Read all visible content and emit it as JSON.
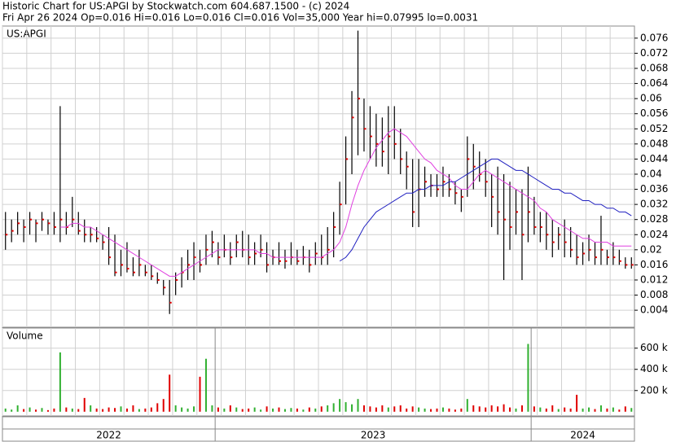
{
  "chart_data": {
    "type": "ohlc",
    "title": "Historic Chart for US:APGI by Stockwatch.com 604.687.1500 - (c) 2024",
    "subtitle": "Fri Apr 26 2024  Op=0.016  Hi=0.016  Lo=0.016  Cl=0.016  Vol=35,000  Year hi=0.07995  lo=0.0031",
    "symbol": "US:APGI",
    "volume_title": "Volume",
    "categories": [
      "2022",
      null,
      null,
      null,
      null,
      null,
      null,
      null,
      null,
      null,
      null,
      null,
      null,
      null,
      null,
      null,
      null,
      null,
      null,
      null,
      null,
      null,
      null,
      null,
      null,
      null,
      null,
      null,
      null,
      null,
      null,
      null,
      null,
      null,
      null,
      "2023",
      null,
      null,
      null,
      null,
      null,
      null,
      null,
      null,
      null,
      null,
      null,
      null,
      null,
      null,
      null,
      null,
      null,
      null,
      null,
      null,
      null,
      null,
      null,
      null,
      null,
      null,
      null,
      null,
      null,
      null,
      null,
      null,
      null,
      null,
      null,
      null,
      null,
      null,
      null,
      null,
      null,
      null,
      null,
      null,
      null,
      null,
      null,
      null,
      null,
      null,
      null,
      "2024",
      null,
      null,
      null,
      null,
      null,
      null,
      null,
      null,
      null,
      null,
      null,
      null,
      null,
      null,
      null,
      null
    ],
    "high": [
      0.03,
      0.028,
      0.03,
      0.028,
      0.03,
      0.028,
      0.03,
      0.028,
      0.03,
      0.058,
      0.03,
      0.034,
      0.03,
      0.028,
      0.026,
      0.026,
      0.024,
      0.026,
      0.024,
      0.02,
      0.022,
      0.018,
      0.02,
      0.016,
      0.016,
      0.014,
      0.012,
      0.012,
      0.014,
      0.018,
      0.02,
      0.022,
      0.02,
      0.024,
      0.025,
      0.022,
      0.024,
      0.022,
      0.024,
      0.025,
      0.024,
      0.022,
      0.024,
      0.022,
      0.02,
      0.022,
      0.02,
      0.022,
      0.02,
      0.021,
      0.02,
      0.022,
      0.024,
      0.026,
      0.03,
      0.038,
      0.05,
      0.062,
      0.078,
      0.06,
      0.058,
      0.056,
      0.055,
      0.058,
      0.058,
      0.052,
      0.046,
      0.044,
      0.044,
      0.042,
      0.04,
      0.04,
      0.042,
      0.04,
      0.038,
      0.036,
      0.05,
      0.048,
      0.046,
      0.044,
      0.04,
      0.042,
      0.04,
      0.038,
      0.036,
      0.036,
      0.042,
      0.034,
      0.03,
      0.03,
      0.028,
      0.026,
      0.028,
      0.026,
      0.024,
      0.022,
      0.024,
      0.022,
      0.029,
      0.02,
      0.022,
      0.02,
      0.018,
      0.018
    ],
    "low": [
      0.02,
      0.022,
      0.024,
      0.022,
      0.024,
      0.022,
      0.025,
      0.024,
      0.024,
      0.022,
      0.024,
      0.026,
      0.024,
      0.022,
      0.022,
      0.022,
      0.02,
      0.016,
      0.013,
      0.013,
      0.014,
      0.013,
      0.013,
      0.013,
      0.012,
      0.011,
      0.008,
      0.003,
      0.008,
      0.01,
      0.012,
      0.012,
      0.014,
      0.016,
      0.018,
      0.016,
      0.018,
      0.016,
      0.018,
      0.018,
      0.016,
      0.016,
      0.018,
      0.014,
      0.016,
      0.016,
      0.015,
      0.016,
      0.016,
      0.016,
      0.014,
      0.016,
      0.016,
      0.016,
      0.018,
      0.024,
      0.032,
      0.04,
      0.045,
      0.046,
      0.044,
      0.042,
      0.042,
      0.04,
      0.044,
      0.04,
      0.036,
      0.026,
      0.026,
      0.034,
      0.034,
      0.034,
      0.034,
      0.034,
      0.032,
      0.03,
      0.034,
      0.036,
      0.038,
      0.034,
      0.026,
      0.024,
      0.012,
      0.02,
      0.024,
      0.012,
      0.022,
      0.024,
      0.022,
      0.02,
      0.018,
      0.02,
      0.018,
      0.018,
      0.016,
      0.016,
      0.017,
      0.016,
      0.016,
      0.016,
      0.016,
      0.016,
      0.015,
      0.015
    ],
    "close": [
      0.024,
      0.025,
      0.027,
      0.026,
      0.028,
      0.027,
      0.028,
      0.027,
      0.026,
      0.028,
      0.026,
      0.028,
      0.025,
      0.024,
      0.024,
      0.023,
      0.022,
      0.018,
      0.014,
      0.016,
      0.015,
      0.014,
      0.016,
      0.014,
      0.013,
      0.012,
      0.01,
      0.006,
      0.012,
      0.014,
      0.016,
      0.018,
      0.016,
      0.02,
      0.022,
      0.018,
      0.02,
      0.018,
      0.022,
      0.02,
      0.018,
      0.019,
      0.02,
      0.016,
      0.018,
      0.017,
      0.017,
      0.018,
      0.017,
      0.018,
      0.016,
      0.019,
      0.018,
      0.02,
      0.026,
      0.032,
      0.044,
      0.055,
      0.06,
      0.052,
      0.05,
      0.048,
      0.046,
      0.05,
      0.048,
      0.044,
      0.042,
      0.03,
      0.036,
      0.038,
      0.037,
      0.036,
      0.038,
      0.036,
      0.035,
      0.034,
      0.044,
      0.042,
      0.04,
      0.038,
      0.034,
      0.03,
      0.028,
      0.026,
      0.03,
      0.024,
      0.03,
      0.026,
      0.026,
      0.024,
      0.022,
      0.024,
      0.022,
      0.02,
      0.018,
      0.019,
      0.02,
      0.018,
      0.02,
      0.018,
      0.018,
      0.017,
      0.016,
      0.016
    ],
    "bar_color": "#000000",
    "close_color": "#e00000",
    "series": [
      {
        "color": "#e040e0",
        "values": [
          null,
          null,
          null,
          null,
          null,
          null,
          null,
          null,
          null,
          0.026,
          0.026,
          0.027,
          0.027,
          0.026,
          0.026,
          0.025,
          0.024,
          0.023,
          0.022,
          0.021,
          0.02,
          0.019,
          0.018,
          0.017,
          0.016,
          0.015,
          0.014,
          0.013,
          0.013,
          0.014,
          0.015,
          0.016,
          0.017,
          0.018,
          0.019,
          0.02,
          0.02,
          0.02,
          0.02,
          0.02,
          0.02,
          0.02,
          0.019,
          0.019,
          0.018,
          0.018,
          0.018,
          0.018,
          0.018,
          0.018,
          0.018,
          0.018,
          0.018,
          0.019,
          0.02,
          0.022,
          0.026,
          0.032,
          0.037,
          0.041,
          0.044,
          0.047,
          0.049,
          0.051,
          0.052,
          0.051,
          0.05,
          0.048,
          0.046,
          0.044,
          0.043,
          0.041,
          0.04,
          0.039,
          0.037,
          0.036,
          0.036,
          0.038,
          0.04,
          0.041,
          0.04,
          0.039,
          0.038,
          0.037,
          0.036,
          0.035,
          0.034,
          0.033,
          0.031,
          0.03,
          0.028,
          0.027,
          0.026,
          0.025,
          0.024,
          0.023,
          0.023,
          0.022,
          0.022,
          0.022,
          0.021,
          0.021,
          0.021,
          0.021
        ]
      },
      {
        "color": "#2020c0",
        "values": [
          null,
          null,
          null,
          null,
          null,
          null,
          null,
          null,
          null,
          null,
          null,
          null,
          null,
          null,
          null,
          null,
          null,
          null,
          null,
          null,
          null,
          null,
          null,
          null,
          null,
          null,
          null,
          null,
          null,
          null,
          null,
          null,
          null,
          null,
          null,
          null,
          null,
          null,
          null,
          null,
          null,
          null,
          null,
          null,
          null,
          null,
          null,
          null,
          null,
          null,
          null,
          null,
          null,
          null,
          null,
          0.017,
          0.018,
          0.02,
          0.023,
          0.026,
          0.028,
          0.03,
          0.031,
          0.032,
          0.033,
          0.034,
          0.035,
          0.035,
          0.036,
          0.036,
          0.037,
          0.037,
          0.037,
          0.038,
          0.038,
          0.039,
          0.04,
          0.041,
          0.042,
          0.043,
          0.044,
          0.044,
          0.043,
          0.042,
          0.041,
          0.041,
          0.04,
          0.039,
          0.038,
          0.037,
          0.036,
          0.036,
          0.035,
          0.035,
          0.034,
          0.033,
          0.033,
          0.032,
          0.032,
          0.031,
          0.031,
          0.03,
          0.03,
          0.029
        ]
      }
    ],
    "ylim": [
      -0.0005,
      0.0792
    ],
    "yticks": [
      0.004,
      0.008,
      0.012,
      0.016,
      0.02,
      0.024,
      0.028,
      0.032,
      0.036,
      0.04,
      0.044,
      0.048,
      0.052,
      0.056,
      0.06,
      0.064,
      0.068,
      0.072,
      0.076
    ],
    "volume": [
      30000,
      20000,
      60000,
      25000,
      40000,
      20000,
      35000,
      15000,
      30000,
      560000,
      40000,
      30000,
      25000,
      130000,
      60000,
      30000,
      25000,
      40000,
      35000,
      50000,
      30000,
      60000,
      25000,
      30000,
      40000,
      80000,
      120000,
      350000,
      60000,
      40000,
      30000,
      50000,
      330000,
      500000,
      60000,
      40000,
      30000,
      60000,
      40000,
      25000,
      30000,
      40000,
      20000,
      50000,
      30000,
      40000,
      25000,
      35000,
      30000,
      20000,
      40000,
      30000,
      50000,
      60000,
      80000,
      120000,
      90000,
      70000,
      120000,
      60000,
      50000,
      40000,
      60000,
      40000,
      50000,
      60000,
      30000,
      50000,
      40000,
      30000,
      25000,
      30000,
      40000,
      30000,
      20000,
      30000,
      120000,
      60000,
      50000,
      40000,
      60000,
      50000,
      70000,
      40000,
      30000,
      60000,
      640000,
      50000,
      40000,
      30000,
      60000,
      25000,
      40000,
      30000,
      160000,
      30000,
      40000,
      25000,
      60000,
      30000,
      40000,
      20000,
      50000,
      35000
    ],
    "up_color": "#30b030",
    "down_color": "#e00000",
    "vlim": [
      -40000,
      790000
    ],
    "vticks": [
      {
        "value": 200000,
        "label": "200 k"
      },
      {
        "value": 400000,
        "label": "400 k"
      },
      {
        "value": 600000,
        "label": "600 k"
      }
    ],
    "grid": true
  }
}
